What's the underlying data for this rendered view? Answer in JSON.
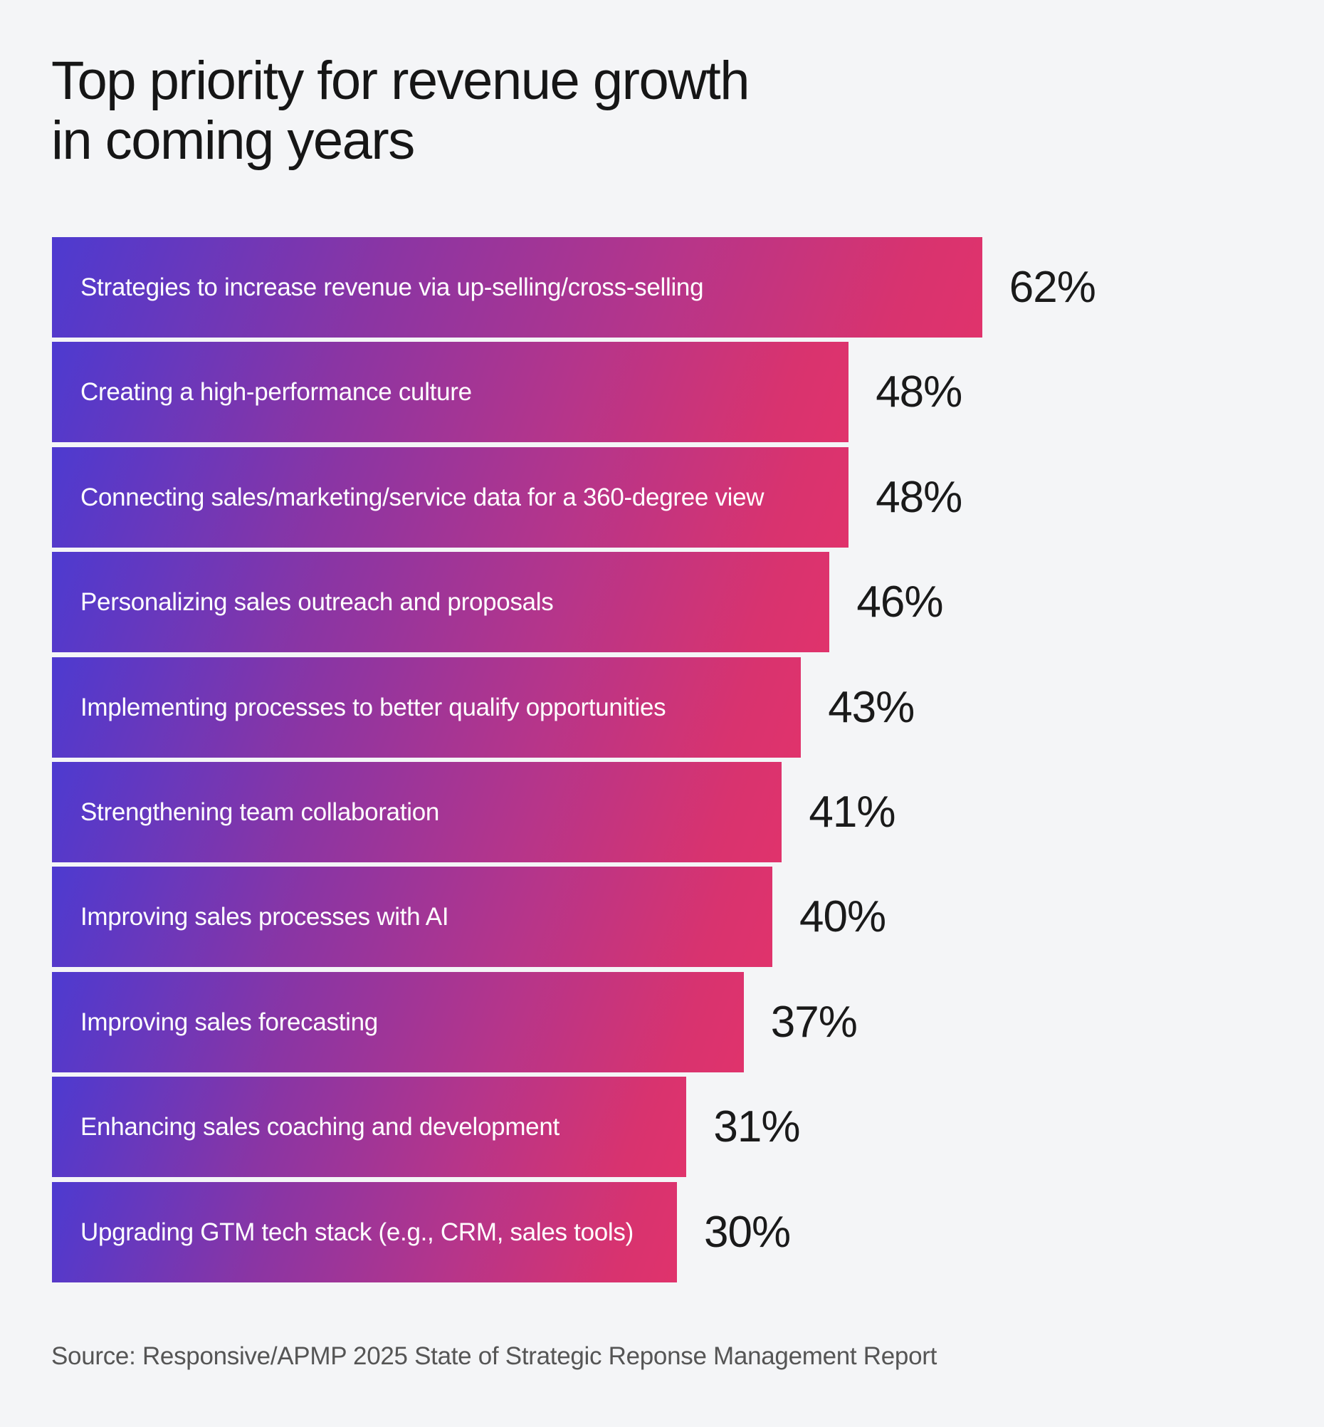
{
  "chart_data": {
    "type": "bar",
    "orientation": "horizontal",
    "title": "Top priority for revenue growth in coming years",
    "categories": [
      "Strategies to increase revenue via up-selling/cross-selling",
      "Creating a high-performance culture",
      "Connecting sales/marketing/service data for a 360-degree view",
      "Personalizing sales outreach and proposals",
      "Implementing processes to better qualify opportunities",
      "Strengthening team collaboration",
      "Improving sales processes with AI",
      "Improving sales forecasting",
      "Enhancing sales coaching and development",
      "Upgrading GTM tech stack (e.g., CRM, sales tools)"
    ],
    "values": [
      62,
      48,
      48,
      46,
      43,
      41,
      40,
      37,
      31,
      30
    ],
    "value_suffix": "%",
    "grid": false,
    "colors": {
      "gradient_start": "#4d3ad0",
      "gradient_end": "#e0336c",
      "background": "#f4f5f7"
    },
    "source": "Source: Responsive/APMP 2025 State of Strategic Reponse Management Report"
  }
}
